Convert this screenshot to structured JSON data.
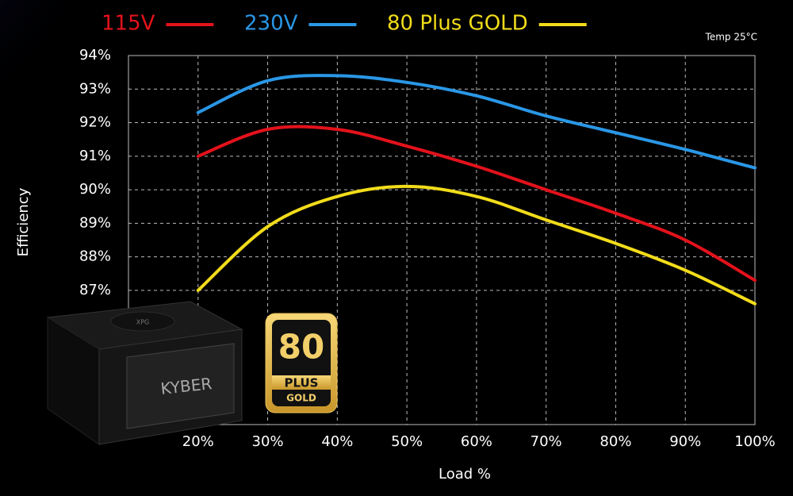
{
  "chart_data": {
    "type": "line",
    "x_label": "Load %",
    "y_label": "Efficiency",
    "note": "Temp 25°C",
    "x": [
      20,
      30,
      40,
      50,
      60,
      70,
      80,
      90,
      100
    ],
    "xlim": [
      10,
      100
    ],
    "xticks": [
      {
        "value": 20,
        "label": "20%"
      },
      {
        "value": 30,
        "label": "30%"
      },
      {
        "value": 40,
        "label": "40%"
      },
      {
        "value": 50,
        "label": "50%"
      },
      {
        "value": 60,
        "label": "60%"
      },
      {
        "value": 70,
        "label": "70%"
      },
      {
        "value": 80,
        "label": "80%"
      },
      {
        "value": 90,
        "label": "90%"
      },
      {
        "value": 100,
        "label": "100%"
      }
    ],
    "ylim": [
      83,
      94
    ],
    "yticks": [
      {
        "value": 87,
        "label": "87%"
      },
      {
        "value": 88,
        "label": "88%"
      },
      {
        "value": 89,
        "label": "89%"
      },
      {
        "value": 90,
        "label": "90%"
      },
      {
        "value": 91,
        "label": "91%"
      },
      {
        "value": 92,
        "label": "92%"
      },
      {
        "value": 93,
        "label": "93%"
      },
      {
        "value": 94,
        "label": "94%"
      }
    ],
    "grid": true,
    "series": [
      {
        "name": "115V",
        "color": "#e3121b",
        "values": [
          91.0,
          91.8,
          91.8,
          91.3,
          90.7,
          90.0,
          89.3,
          88.5,
          87.3
        ]
      },
      {
        "name": "230V",
        "color": "#2a97e6",
        "values": [
          92.3,
          93.25,
          93.4,
          93.2,
          92.8,
          92.2,
          91.7,
          91.2,
          90.65
        ]
      },
      {
        "name": "80 Plus GOLD",
        "color": "#f2dc1a",
        "values": [
          87.0,
          88.9,
          89.8,
          90.1,
          89.8,
          89.1,
          88.4,
          87.6,
          86.6
        ]
      }
    ],
    "badge": {
      "number": "80",
      "word": "PLUS",
      "level": "GOLD"
    },
    "product": {
      "brand": "XPG",
      "model": "KYBER"
    }
  }
}
